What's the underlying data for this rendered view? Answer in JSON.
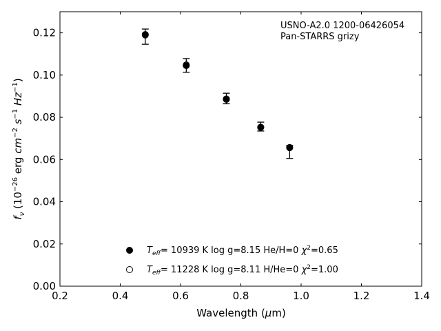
{
  "chart_data": {
    "type": "scatter",
    "annotation_lines": [
      "USNO-A2.0 1200-06426054",
      "Pan-STARRS grizy"
    ],
    "xlabel": "Wavelength (μm)",
    "ylabel": "fν (10⁻²⁶ erg cm⁻² s⁻¹ Hz⁻¹)",
    "xlim": [
      0.2,
      1.4
    ],
    "ylim": [
      0.0,
      0.13
    ],
    "xticks": [
      "0.2",
      "0.4",
      "0.6",
      "0.8",
      "1.0",
      "1.2",
      "1.4"
    ],
    "yticks": [
      "0.00",
      "0.02",
      "0.04",
      "0.06",
      "0.08",
      "0.10",
      "0.12"
    ],
    "xtick_values": [
      0.2,
      0.4,
      0.6,
      0.8,
      1.0,
      1.2,
      1.4
    ],
    "ytick_values": [
      0.0,
      0.02,
      0.04,
      0.06,
      0.08,
      0.1,
      0.12
    ],
    "observed": {
      "x": [
        0.483,
        0.619,
        0.752,
        0.866,
        0.962
      ],
      "y": [
        0.1182,
        0.1046,
        0.0889,
        0.0757,
        0.0647
      ],
      "err_low": [
        0.1146,
        0.1013,
        0.0864,
        0.0735,
        0.0605
      ],
      "err_high": [
        0.1218,
        0.1078,
        0.0914,
        0.0777,
        0.0667
      ]
    },
    "series": [
      {
        "label": "T_eff= 10939 K  log g=8.15  He/H=0  χ²=0.65",
        "marker": "filled",
        "x": [
          0.483,
          0.619,
          0.752,
          0.866,
          0.962
        ],
        "y": [
          0.119,
          0.1045,
          0.0885,
          0.0752,
          0.0657
        ]
      },
      {
        "label": "T_eff= 11228 K  log g=8.11  H/He=0  χ²=1.00",
        "marker": "open",
        "x": [
          0.483,
          0.619,
          0.752,
          0.866,
          0.962
        ],
        "y": [
          0.1192,
          0.1048,
          0.0887,
          0.0753,
          0.0656
        ]
      }
    ],
    "legend_placement": "lower-center",
    "grid": false
  }
}
